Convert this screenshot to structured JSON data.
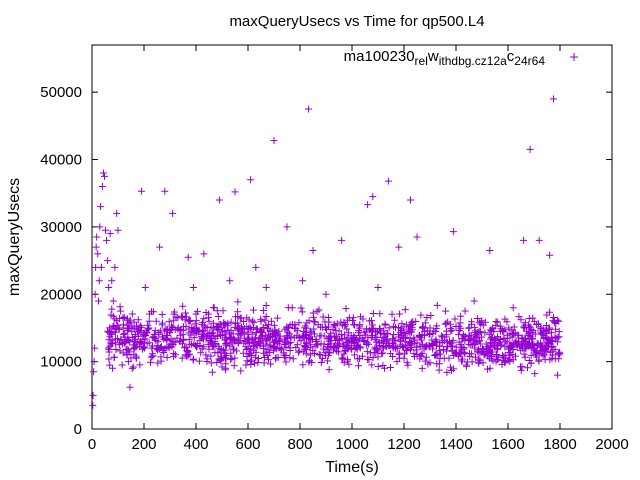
{
  "chart_data": {
    "type": "scatter",
    "title": "maxQueryUsecs vs Time for qp500.L4",
    "xlabel": "Time(s)",
    "ylabel": "maxQueryUsecs",
    "xlim": [
      0,
      2000
    ],
    "ylim": [
      0,
      57000
    ],
    "xticks": [
      0,
      200,
      400,
      600,
      800,
      1000,
      1200,
      1400,
      1600,
      1800,
      2000
    ],
    "yticks": [
      0,
      10000,
      20000,
      30000,
      40000,
      50000
    ],
    "grid": false,
    "legend_position": "top-right",
    "marker": "plus",
    "series": [
      {
        "name": "ma100230_rel_withdbg.cz12a_c24r64",
        "legend_parts": [
          "ma100230",
          "rel",
          "w",
          "ithdbg.cz12a",
          "c",
          "24r64"
        ],
        "color": "#9400d3",
        "points": [
          [
            3,
            3500
          ],
          [
            4,
            5000
          ],
          [
            6,
            8500
          ],
          [
            8,
            10000
          ],
          [
            10,
            12000
          ],
          [
            12,
            20000
          ],
          [
            14,
            24000
          ],
          [
            16,
            27000
          ],
          [
            18,
            28500
          ],
          [
            22,
            26000
          ],
          [
            25,
            19000
          ],
          [
            28,
            22000
          ],
          [
            30,
            30000
          ],
          [
            33,
            33000
          ],
          [
            36,
            24000
          ],
          [
            40,
            36000
          ],
          [
            44,
            38000
          ],
          [
            48,
            37500
          ],
          [
            52,
            29500
          ],
          [
            56,
            28000
          ],
          [
            60,
            25000
          ],
          [
            64,
            21000
          ],
          [
            70,
            29000
          ],
          [
            76,
            22000
          ],
          [
            82,
            19000
          ],
          [
            88,
            24000
          ],
          [
            95,
            32000
          ],
          [
            100,
            29500
          ],
          [
            110,
            17500
          ],
          [
            120,
            15000
          ],
          [
            130,
            13000
          ],
          [
            140,
            10000
          ],
          [
            146,
            6200
          ],
          [
            155,
            9000
          ],
          [
            165,
            12500
          ],
          [
            175,
            14500
          ],
          [
            190,
            35300
          ],
          [
            205,
            21000
          ],
          [
            220,
            16000
          ],
          [
            240,
            13500
          ],
          [
            260,
            27000
          ],
          [
            270,
            17000
          ],
          [
            280,
            35300
          ],
          [
            300,
            12500
          ],
          [
            310,
            32000
          ],
          [
            330,
            16500
          ],
          [
            350,
            14000
          ],
          [
            370,
            25500
          ],
          [
            390,
            21000
          ],
          [
            410,
            14500
          ],
          [
            430,
            26000
          ],
          [
            450,
            16000
          ],
          [
            470,
            18000
          ],
          [
            490,
            34000
          ],
          [
            510,
            15500
          ],
          [
            530,
            22000
          ],
          [
            550,
            35200
          ],
          [
            570,
            16500
          ],
          [
            590,
            13000
          ],
          [
            610,
            37000
          ],
          [
            630,
            24000
          ],
          [
            650,
            16000
          ],
          [
            670,
            21000
          ],
          [
            700,
            42800
          ],
          [
            720,
            13000
          ],
          [
            750,
            30000
          ],
          [
            770,
            18000
          ],
          [
            790,
            12500
          ],
          [
            810,
            22000
          ],
          [
            833,
            47500
          ],
          [
            850,
            26500
          ],
          [
            870,
            15500
          ],
          [
            900,
            20000
          ],
          [
            930,
            12000
          ],
          [
            960,
            28000
          ],
          [
            990,
            16500
          ],
          [
            1010,
            11000
          ],
          [
            1040,
            13500
          ],
          [
            1060,
            33300
          ],
          [
            1080,
            34500
          ],
          [
            1100,
            21000
          ],
          [
            1120,
            12000
          ],
          [
            1140,
            36800
          ],
          [
            1160,
            14000
          ],
          [
            1180,
            27000
          ],
          [
            1200,
            10500
          ],
          [
            1225,
            34000
          ],
          [
            1250,
            28500
          ],
          [
            1270,
            9000
          ],
          [
            1300,
            15000
          ],
          [
            1330,
            11000
          ],
          [
            1360,
            17500
          ],
          [
            1390,
            29300
          ],
          [
            1410,
            14000
          ],
          [
            1440,
            9500
          ],
          [
            1470,
            19000
          ],
          [
            1500,
            11500
          ],
          [
            1530,
            26500
          ],
          [
            1560,
            13500
          ],
          [
            1590,
            10500
          ],
          [
            1620,
            18000
          ],
          [
            1660,
            28000
          ],
          [
            1685,
            41500
          ],
          [
            1700,
            12500
          ],
          [
            1720,
            28000
          ],
          [
            1740,
            11000
          ],
          [
            1760,
            25800
          ],
          [
            1775,
            49000
          ],
          [
            1790,
            8000
          ],
          [
            1795,
            16000
          ]
        ]
      }
    ],
    "band": {
      "x_start": 60,
      "x_end": 1800,
      "count": 1450,
      "core_min": 8000,
      "core_max": 22000,
      "early_center": 13500,
      "late_center": 13000
    }
  }
}
